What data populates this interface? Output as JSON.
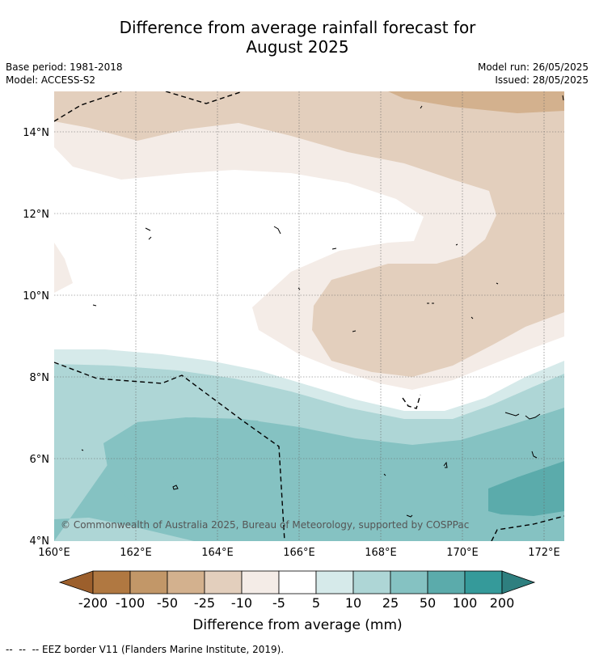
{
  "title": {
    "line1": "Difference from average rainfall forecast for",
    "line2": "August 2025"
  },
  "meta": {
    "base_period": "Base period: 1981-2018",
    "model": "Model: ACCESS-S2",
    "model_run": "Model run: 26/05/2025",
    "issued": "Issued: 28/05/2025"
  },
  "map": {
    "lon_range": [
      160,
      172.5
    ],
    "lat_range": [
      4,
      15
    ],
    "lon_ticks": [
      "160°E",
      "162°E",
      "164°E",
      "166°E",
      "168°E",
      "170°E",
      "172°E"
    ],
    "lat_ticks": [
      "14°N",
      "12°N",
      "10°N",
      "8°N",
      "6°N",
      "4°N"
    ],
    "copyright": "© Commonwealth of Australia 2025, Bureau of Meteorology, supported by COSPPac"
  },
  "colorbar": {
    "colors": [
      "#9c5f2c",
      "#b07841",
      "#c29768",
      "#d3b18e",
      "#e3cfbd",
      "#f4ece7",
      "#ffffff",
      "#d6eaea",
      "#aed6d6",
      "#85c2c2",
      "#5babab",
      "#359a9a",
      "#2e7f7f"
    ],
    "ticks": [
      "-200",
      "-100",
      "-50",
      "-25",
      "-10",
      "-5",
      "5",
      "10",
      "25",
      "50",
      "100",
      "200"
    ],
    "label": "Difference from average (mm)"
  },
  "footer": "--  --  -- EEZ border V11 (Flanders Marine Institute, 2019)."
}
